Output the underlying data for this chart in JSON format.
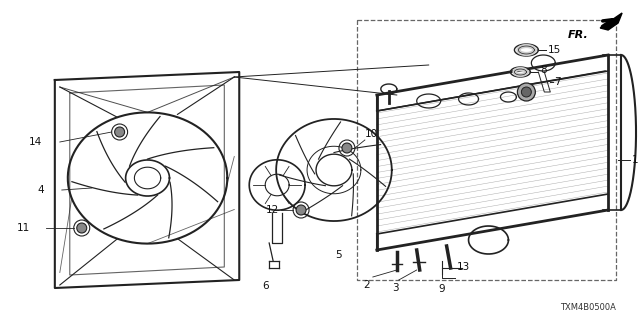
{
  "bg_color": "#ffffff",
  "diagram_code": "TXM4B0500A",
  "line_color": "#222222",
  "text_color": "#111111",
  "fig_w": 6.4,
  "fig_h": 3.2,
  "dpi": 100
}
